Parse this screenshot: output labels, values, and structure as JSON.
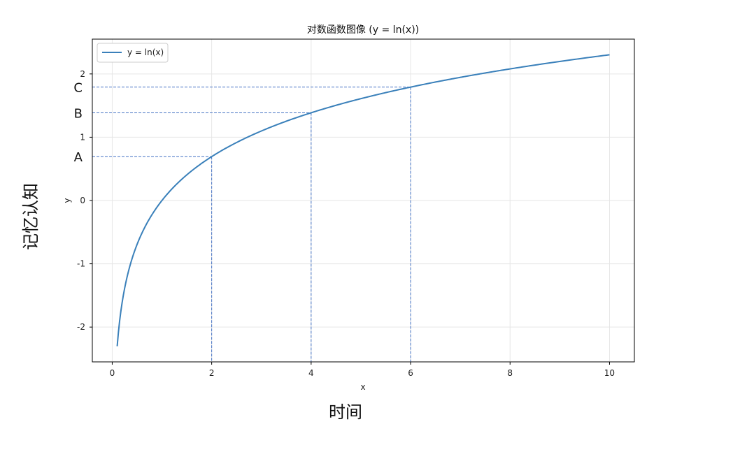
{
  "chart_data": {
    "type": "line",
    "title": "对数函数图像 (y = ln(x))",
    "xlabel": "x",
    "ylabel": "y",
    "xlim": [
      -0.4,
      10.5
    ],
    "ylim": [
      -2.55,
      2.55
    ],
    "x_ticks": [
      0,
      2,
      4,
      6,
      8,
      10
    ],
    "y_ticks": [
      -2,
      -1,
      0,
      1,
      2
    ],
    "x_tick_labels": [
      "0",
      "2",
      "4",
      "6",
      "8",
      "10"
    ],
    "y_tick_labels": [
      "-2",
      "-1",
      "0",
      "1",
      "2"
    ],
    "grid": true,
    "legend_position": "top-left",
    "series": [
      {
        "name": "y = ln(x)",
        "color": "#3a80ba",
        "x_range": [
          0.1,
          10
        ],
        "function": "ln"
      }
    ],
    "annotations": [
      {
        "label": "A",
        "x": 2,
        "y": 0.693
      },
      {
        "label": "B",
        "x": 4,
        "y": 1.386
      },
      {
        "label": "C",
        "x": 6,
        "y": 1.792
      }
    ],
    "guide_color": "#4472c4",
    "outer_xlabel": "时间",
    "outer_ylabel": "记忆认知"
  }
}
